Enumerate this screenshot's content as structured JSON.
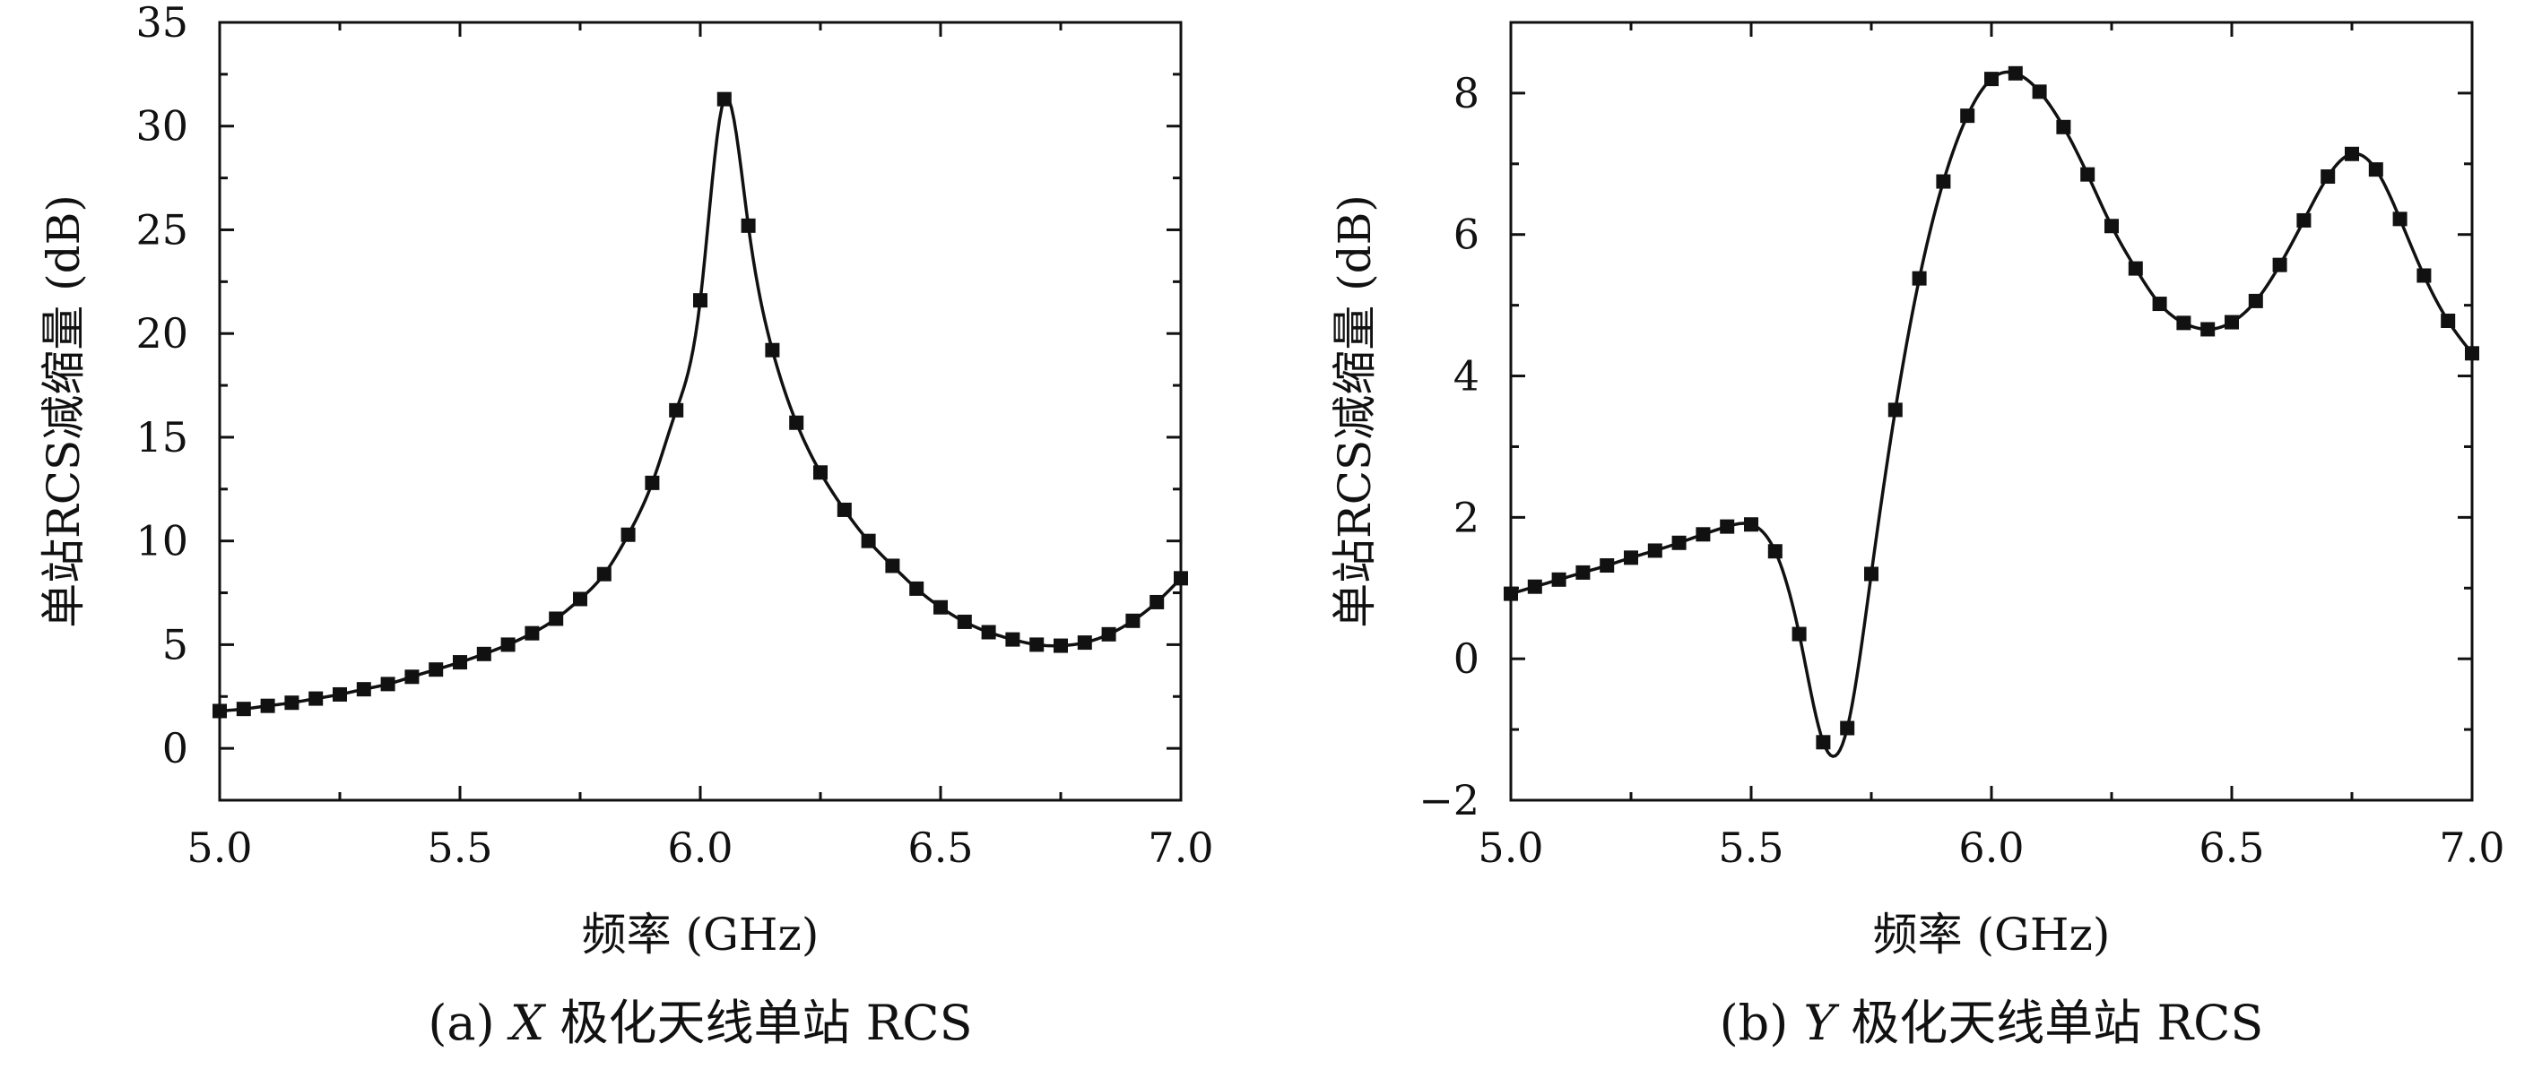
{
  "chart_data": [
    {
      "type": "line",
      "panel": "a",
      "caption": "(a) X 极化天线单站 RCS",
      "caption_parts": {
        "prefix": "(a) ",
        "italic": "X",
        "suffix": " 极化天线单站 RCS"
      },
      "xlabel": "频率 (GHz)",
      "ylabel": "单站RCS减缩量 (dB)",
      "xlim": [
        5.0,
        7.0
      ],
      "ylim": [
        -2.5,
        35
      ],
      "xticks": [
        5.0,
        5.5,
        6.0,
        6.5,
        7.0
      ],
      "xtick_labels": [
        "5.0",
        "5.5",
        "6.0",
        "6.5",
        "7.0"
      ],
      "yticks": [
        0,
        5,
        10,
        15,
        20,
        25,
        30,
        35
      ],
      "ytick_labels": [
        "0",
        "5",
        "10",
        "15",
        "20",
        "25",
        "30",
        "35"
      ],
      "marker": "square",
      "color": "#111111",
      "x": [
        5.0,
        5.05,
        5.1,
        5.15,
        5.2,
        5.25,
        5.3,
        5.35,
        5.4,
        5.45,
        5.5,
        5.55,
        5.6,
        5.65,
        5.7,
        5.75,
        5.8,
        5.85,
        5.9,
        5.95,
        6.0,
        6.05,
        6.1,
        6.15,
        6.2,
        6.25,
        6.3,
        6.35,
        6.4,
        6.45,
        6.5,
        6.55,
        6.6,
        6.65,
        6.7,
        6.75,
        6.8,
        6.85,
        6.9,
        6.95,
        7.0
      ],
      "y": [
        1.8,
        1.9,
        2.05,
        2.2,
        2.4,
        2.6,
        2.85,
        3.1,
        3.45,
        3.8,
        4.15,
        4.55,
        5.0,
        5.55,
        6.25,
        7.2,
        8.4,
        10.3,
        12.8,
        16.3,
        21.6,
        31.3,
        25.2,
        19.2,
        15.7,
        13.3,
        11.5,
        10.0,
        8.8,
        7.7,
        6.8,
        6.1,
        5.6,
        5.25,
        5.0,
        4.95,
        5.1,
        5.5,
        6.15,
        7.05,
        8.2
      ]
    },
    {
      "type": "line",
      "panel": "b",
      "caption": "(b) Y 极化天线单站 RCS",
      "caption_parts": {
        "prefix": "(b) ",
        "italic": "Y",
        "suffix": " 极化天线单站 RCS"
      },
      "xlabel": "频率 (GHz)",
      "ylabel": "单站RCS减缩量 (dB)",
      "xlim": [
        5.0,
        7.0
      ],
      "ylim": [
        -2,
        9
      ],
      "xticks": [
        5.0,
        5.5,
        6.0,
        6.5,
        7.0
      ],
      "xtick_labels": [
        "5.0",
        "5.5",
        "6.0",
        "6.5",
        "7.0"
      ],
      "yticks": [
        -2,
        0,
        2,
        4,
        6,
        8
      ],
      "ytick_labels": [
        "−2",
        "0",
        "2",
        "4",
        "6",
        "8"
      ],
      "marker": "square",
      "color": "#111111",
      "x": [
        5.0,
        5.05,
        5.1,
        5.15,
        5.2,
        5.25,
        5.3,
        5.35,
        5.4,
        5.45,
        5.5,
        5.55,
        5.6,
        5.65,
        5.7,
        5.75,
        5.8,
        5.85,
        5.9,
        5.95,
        6.0,
        6.05,
        6.1,
        6.15,
        6.2,
        6.25,
        6.3,
        6.35,
        6.4,
        6.45,
        6.5,
        6.55,
        6.6,
        6.65,
        6.7,
        6.75,
        6.8,
        6.85,
        6.9,
        6.95,
        7.0
      ],
      "y": [
        0.92,
        1.02,
        1.12,
        1.22,
        1.32,
        1.43,
        1.53,
        1.64,
        1.76,
        1.87,
        1.9,
        1.52,
        0.35,
        -1.18,
        -0.98,
        1.2,
        3.52,
        5.38,
        6.75,
        7.68,
        8.2,
        8.28,
        8.02,
        7.52,
        6.85,
        6.12,
        5.52,
        5.02,
        4.75,
        4.66,
        4.76,
        5.06,
        5.57,
        6.2,
        6.82,
        7.14,
        6.92,
        6.22,
        5.42,
        4.78,
        4.32
      ]
    }
  ]
}
